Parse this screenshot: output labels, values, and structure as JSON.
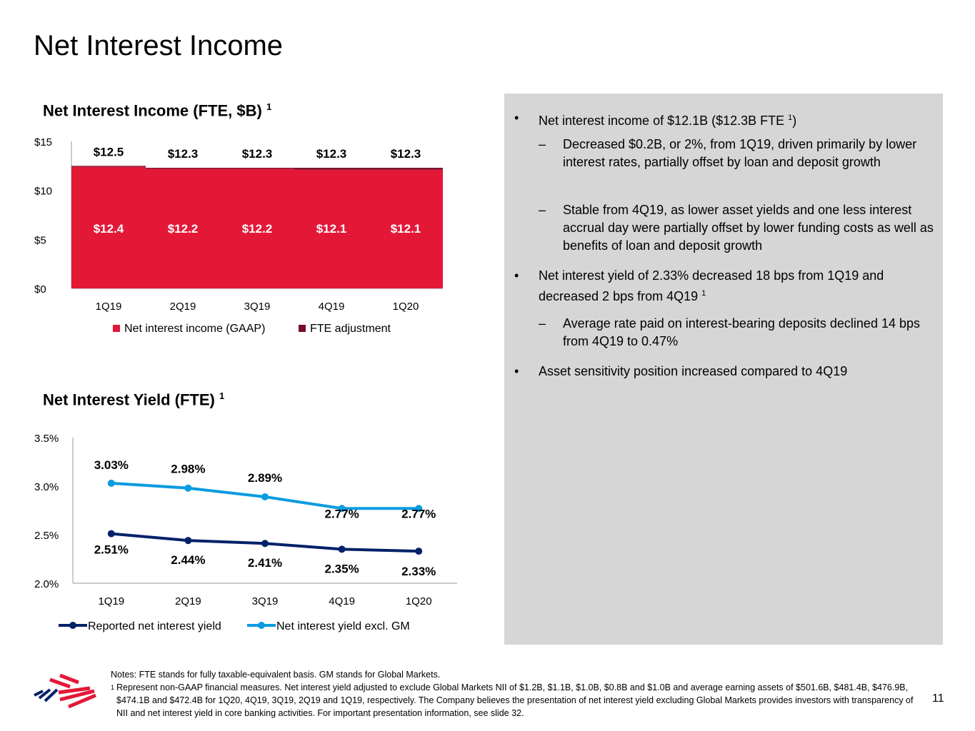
{
  "title": "Net Interest Income",
  "nii_chart_title": "Net Interest Income (FTE, $B)",
  "nii_chart_footnote": "1",
  "yield_chart_title": "Net Interest Yield (FTE)",
  "yield_chart_footnote": "1",
  "chart_data": [
    {
      "type": "bar",
      "stacked": true,
      "categories": [
        "1Q19",
        "2Q19",
        "3Q19",
        "4Q19",
        "1Q20"
      ],
      "series": [
        {
          "name": "Net interest income (GAAP)",
          "values": [
            12.4,
            12.2,
            12.2,
            12.1,
            12.1
          ],
          "color": "#e31837",
          "labels": [
            "$12.4",
            "$12.2",
            "$12.2",
            "$12.1",
            "$12.1"
          ]
        },
        {
          "name": "FTE adjustment",
          "values": [
            0.1,
            0.1,
            0.1,
            0.2,
            0.2
          ],
          "color": "#7a0c27"
        }
      ],
      "total_labels": [
        "$12.5",
        "$12.3",
        "$12.3",
        "$12.3",
        "$12.3"
      ],
      "yticks": [
        "$0",
        "$5",
        "$10",
        "$15"
      ],
      "ytick_values": [
        0,
        5,
        10,
        15
      ],
      "ylim": [
        0,
        15
      ],
      "legend": "bottom"
    },
    {
      "type": "line",
      "categories": [
        "1Q19",
        "2Q19",
        "3Q19",
        "4Q19",
        "1Q20"
      ],
      "series": [
        {
          "name": "Reported net interest yield",
          "values": [
            2.51,
            2.44,
            2.41,
            2.35,
            2.33
          ],
          "color": "#012169",
          "labels": [
            "2.51%",
            "2.44%",
            "2.41%",
            "2.35%",
            "2.33%"
          ]
        },
        {
          "name": "Net interest yield excl. GM",
          "values": [
            3.03,
            2.98,
            2.89,
            2.77,
            2.77
          ],
          "color": "#0a9be0",
          "labels": [
            "3.03%",
            "2.98%",
            "2.89%",
            "2.77%",
            "2.77%"
          ]
        }
      ],
      "yticks": [
        "2.0%",
        "2.5%",
        "3.0%",
        "3.5%"
      ],
      "ytick_values": [
        2.0,
        2.5,
        3.0,
        3.5
      ],
      "ylim": [
        2.0,
        3.5
      ],
      "legend": "bottom"
    }
  ],
  "bullets": {
    "b1": "Net interest income of $12.1B ($12.3B FTE ",
    "b1_sup": "1",
    "b1_end": ")",
    "b1a": "Decreased $0.2B, or 2%, from 1Q19, driven primarily by lower interest rates, partially offset by loan and deposit growth",
    "b1b": "Stable from 4Q19, as lower asset yields and one less interest accrual day were partially offset by lower funding costs as well as benefits of loan and deposit growth",
    "b2": "Net interest yield of 2.33% decreased 18 bps from 1Q19 and decreased 2 bps from 4Q19 ",
    "b2_sup": "1",
    "b2a": "Average rate paid on interest-bearing deposits declined 14 bps from 4Q19 to 0.47%",
    "b3": "Asset sensitivity position increased compared to 4Q19",
    "dot": "•",
    "dash": "–"
  },
  "notes": {
    "line1": "Notes: FTE stands for fully taxable-equivalent basis. GM stands for Global Markets.",
    "fn_mark": "1",
    "line2": "Represent non-GAAP financial measures. Net interest yield adjusted to exclude Global Markets NII of $1.2B, $1.1B, $1.0B, $0.8B and $1.0B and average earning assets of $501.6B, $481.4B, $476.9B, $474.1B and $472.4B for 1Q20, 4Q19, 3Q19, 2Q19 and 1Q19, respectively. The Company believes the presentation of net interest yield excluding Global Markets provides investors with transparency of NII and net interest yield in core banking activities. For important presentation information, see slide 32."
  },
  "page_number": "11"
}
